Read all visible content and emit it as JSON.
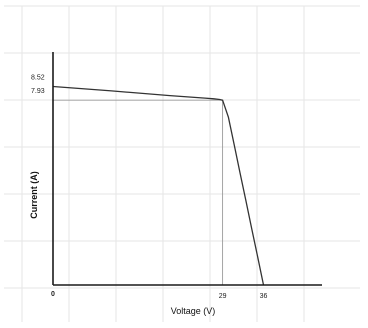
{
  "chart_data": {
    "type": "line",
    "title": "",
    "xlabel": "Voltage (V)",
    "ylabel": "Current (A)",
    "x_ticks": [
      {
        "value": 0,
        "label": "0"
      },
      {
        "value": 29,
        "label": "29"
      },
      {
        "value": 36,
        "label": "36"
      }
    ],
    "y_ticks": [
      {
        "value": 8.52,
        "label": "8.52"
      },
      {
        "value": 7.93,
        "label": "7.93"
      }
    ],
    "series": [
      {
        "x": [
          0,
          10,
          20,
          26,
          27.5,
          28.5,
          29,
          30,
          31,
          32,
          33,
          34,
          35,
          36
        ],
        "y": [
          8.52,
          8.33,
          8.13,
          8.02,
          7.99,
          7.96,
          7.93,
          7.2,
          6.0,
          4.8,
          3.6,
          2.4,
          1.2,
          0
        ]
      }
    ],
    "xlim": [
      0,
      46
    ],
    "ylim": [
      0,
      10
    ],
    "grid": true,
    "legend": false
  }
}
